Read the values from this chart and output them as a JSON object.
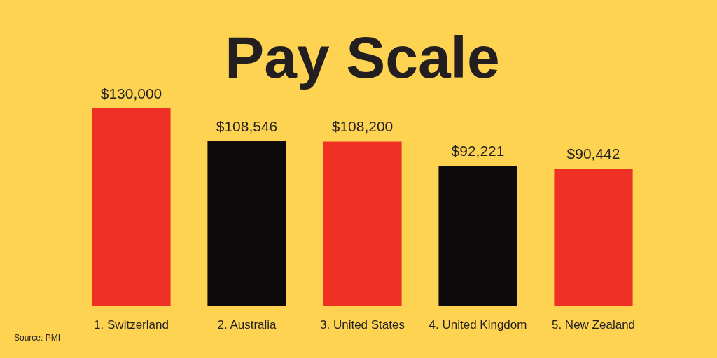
{
  "chart_data": {
    "type": "bar",
    "title": "Pay Scale",
    "categories": [
      "1. Switzerland",
      "2. Australia",
      "3. United States",
      "4. United Kingdom",
      "5. New Zealand"
    ],
    "values": [
      130000,
      108546,
      108200,
      92221,
      90442
    ],
    "value_labels": [
      "$130,000",
      "$108,546",
      "$108,200",
      "$92,221",
      "$90,442"
    ],
    "colors": [
      "#ee3124",
      "#0e0a0b",
      "#ee3124",
      "#0e0a0b",
      "#ee3124"
    ],
    "ylim": [
      0,
      130000
    ],
    "tick_labels": "x",
    "annotations": [
      "Source: PMI"
    ]
  }
}
